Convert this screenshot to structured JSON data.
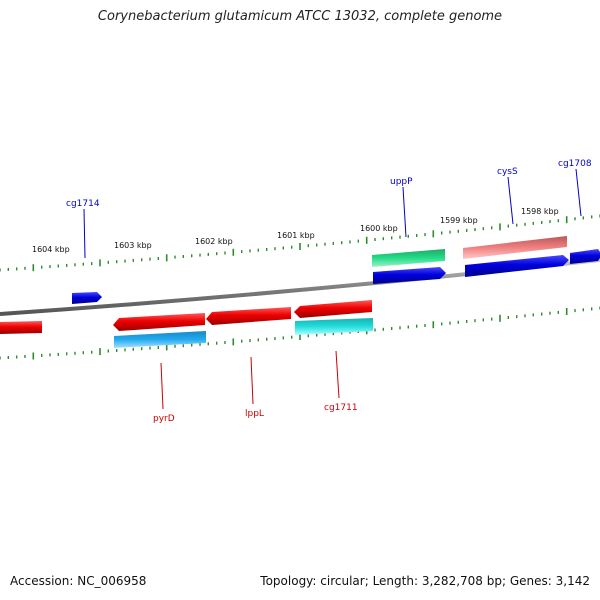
{
  "title": "Corynebacterium glutamicum ATCC 13032, complete genome",
  "footer": {
    "accession_label": "Accession:",
    "accession": "NC_006958",
    "topology_label": "Topology:",
    "topology": "circular;",
    "length_label": "Length:",
    "length": "3,282,708 bp;",
    "genes_label": "Genes:",
    "genes": "3,142"
  },
  "scale_labels": [
    "1604 kbp",
    "1603 kbp",
    "1602 kbp",
    "1601 kbp",
    "1600 kbp",
    "1599 kbp",
    "1598 kbp"
  ],
  "gene_labels": {
    "forward": [
      "cg1714",
      "uppP",
      "cysS",
      "cg1708"
    ],
    "reverse": [
      "pyrD",
      "lppL",
      "cg1711"
    ]
  },
  "colors": {
    "backbone": "#808080",
    "tick": "#2e8b2e",
    "forward_gene": "#0000dd",
    "reverse_gene": "#ee0000",
    "forward_cog_green": "#22dd88",
    "forward_cog_pink": "#f08080",
    "reverse_cog_blue": "#22aaee",
    "reverse_cog_cyan": "#22dddd",
    "forward_label": "#0000cc",
    "reverse_label": "#cc0000"
  }
}
